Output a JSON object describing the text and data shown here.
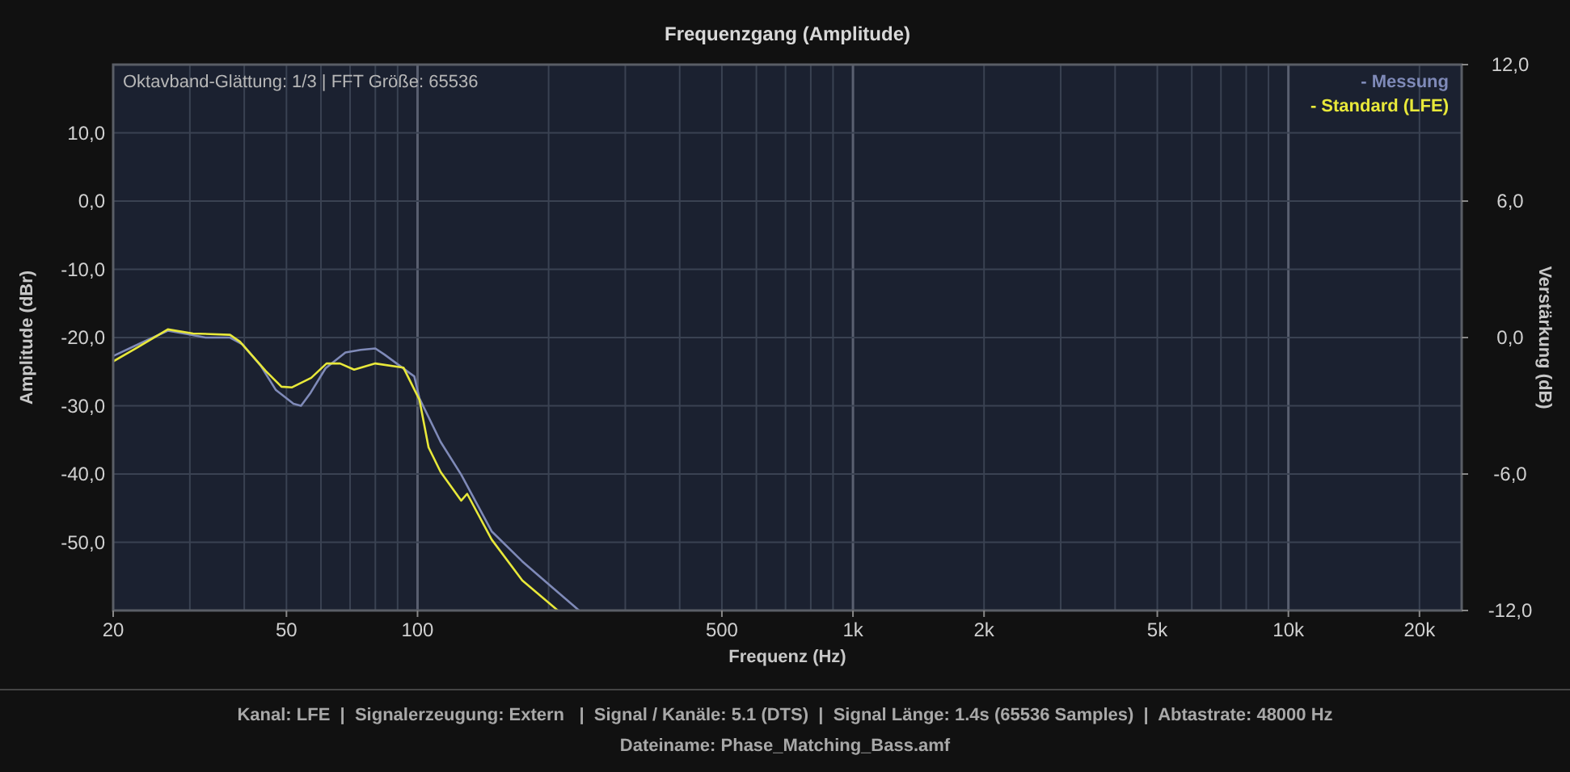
{
  "chart_data": {
    "type": "line",
    "title": "Frequenzgang (Amplitude)",
    "xlabel": "Frequenz (Hz)",
    "ylabel": "Amplitude (dBr)",
    "y2label": "Verstärkung (dB)",
    "annotations": [
      "Oktavband-Glättung: 1/3 | FFT Größe: 65536",
      "Kanal: LFE  |  Signalerzeugung: Extern   |  Signal / Kanäle: 5.1 (DTS)  |  Signal Länge: 1.4s (65536 Samples)  |  Abtastrate: 48000 Hz",
      "Dateiname: Phase_Matching_Bass.amf"
    ],
    "log": "x",
    "grid": true,
    "legend": "top right",
    "xlim": [
      20,
      25000
    ],
    "ylim": [
      -60,
      20
    ],
    "y2lim": [
      -12,
      12
    ],
    "xticks": [
      20,
      50,
      100,
      500,
      {
        "value": 1000,
        "label": "1k"
      },
      {
        "value": 2000,
        "label": "2k"
      },
      {
        "value": 5000,
        "label": "5k"
      },
      {
        "value": 10000,
        "label": "10k"
      },
      {
        "value": 20000,
        "label": "20k"
      }
    ],
    "yticks": [
      {
        "value": -50,
        "label": "-50,0"
      },
      {
        "value": -40,
        "label": "-40,0"
      },
      {
        "value": -30,
        "label": "-30,0"
      },
      {
        "value": -20,
        "label": "-20,0"
      },
      {
        "value": -10,
        "label": "-10,0"
      },
      {
        "value": 0,
        "label": "0,0"
      },
      {
        "value": 10,
        "label": "10,0"
      }
    ],
    "y2ticks": [
      {
        "value": -12,
        "label": "-12,0"
      },
      {
        "value": -6,
        "label": "-6,0"
      },
      {
        "value": 0,
        "label": "0,0"
      },
      {
        "value": 6,
        "label": "6,0"
      },
      {
        "value": 12,
        "label": "12,0"
      }
    ],
    "series": [
      {
        "name": "- Messung",
        "color": "#7f8ab8",
        "x": [
          20,
          22.8,
          26.7,
          29.6,
          32.6,
          37.1,
          39.6,
          43.6,
          47.3,
          51.9,
          54,
          56.8,
          61.5,
          68.3,
          74,
          80,
          84,
          98.3,
          101,
          113,
          126,
          148,
          174,
          202,
          235
        ],
        "values": [
          -22.7,
          -21,
          -19,
          -19.5,
          -20,
          -20,
          -21,
          -24.1,
          -27.7,
          -29.7,
          -30,
          -28.1,
          -24.5,
          -22.2,
          -21.8,
          -21.6,
          -22.5,
          -25.7,
          -28.9,
          -35.3,
          -40.1,
          -48.4,
          -52.8,
          -56.4,
          -60
        ]
      },
      {
        "name": "- Standard (LFE)",
        "color": "#e8e83a",
        "x": [
          20,
          22.8,
          26.7,
          30.5,
          37.1,
          39.1,
          44.8,
          48.7,
          51.5,
          57,
          61.8,
          66.4,
          71.5,
          80,
          92.8,
          101,
          106,
          113,
          126,
          130,
          148,
          174,
          210
        ],
        "values": [
          -23.5,
          -21.4,
          -18.8,
          -19.4,
          -19.6,
          -20.6,
          -24.9,
          -27.2,
          -27.3,
          -25.9,
          -23.8,
          -23.8,
          -24.7,
          -23.8,
          -24.4,
          -29.1,
          -36.1,
          -39.7,
          -43.9,
          -42.9,
          -49.6,
          -55.6,
          -60
        ]
      }
    ]
  }
}
